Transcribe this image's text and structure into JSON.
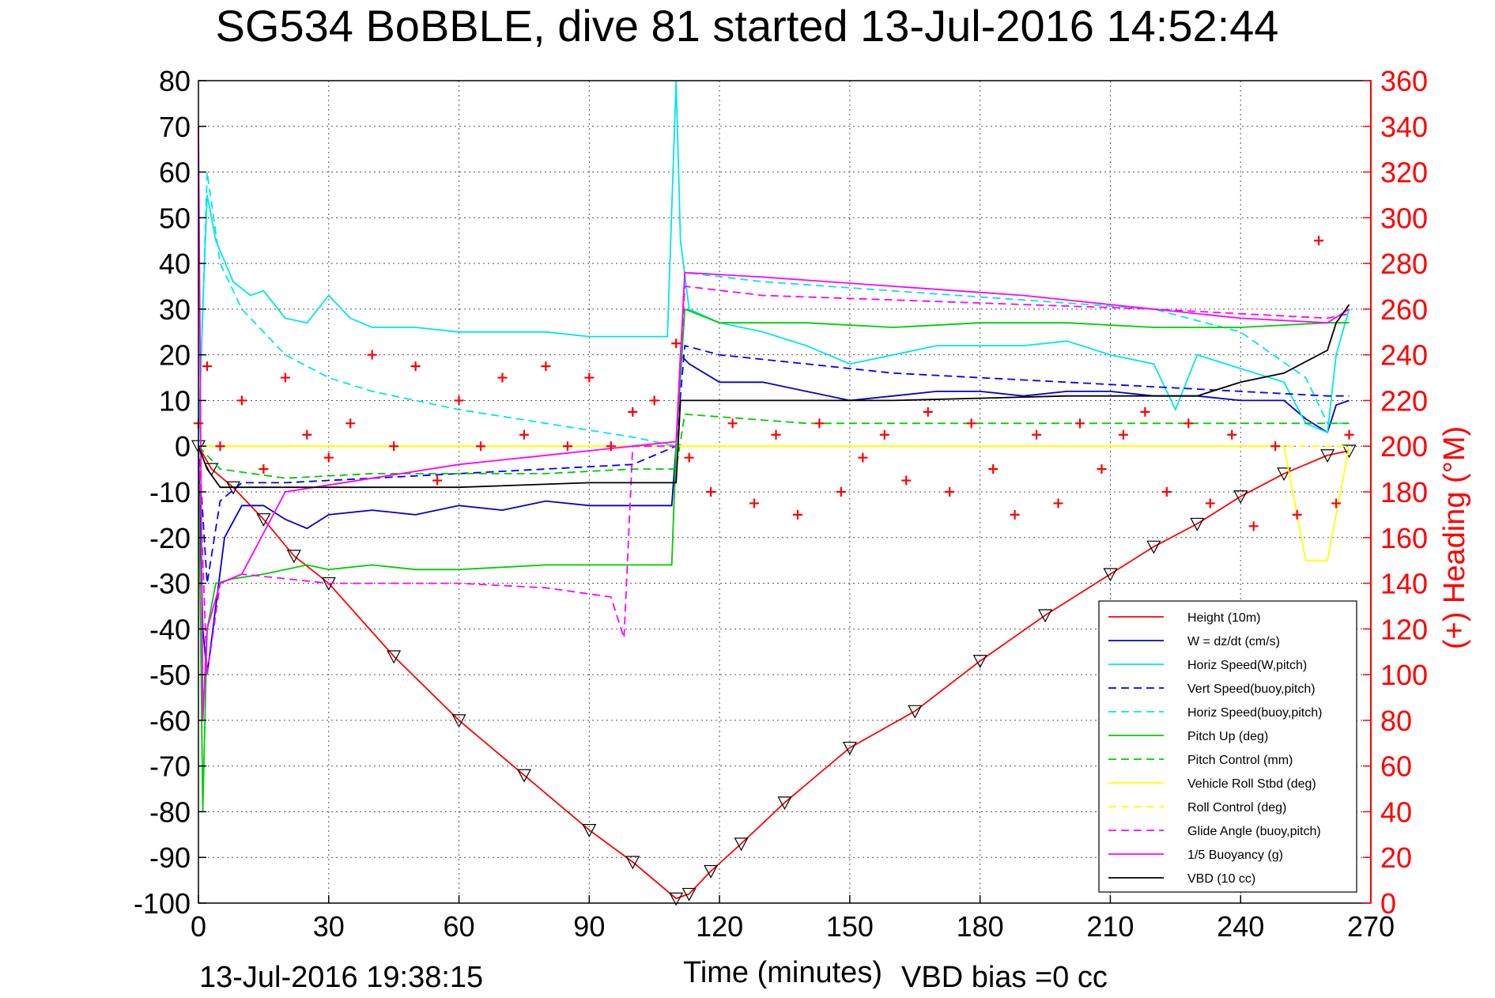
{
  "chart_data": {
    "type": "line",
    "title": "SG534 BoBBLE, dive 81 started 13-Jul-2016 14:52:44",
    "xlabel": "Time (minutes)",
    "ylabel": "",
    "y2label": "(+) Heading (°M)",
    "xlim": [
      0,
      270
    ],
    "ylim": [
      -100,
      80
    ],
    "y2lim": [
      0,
      360
    ],
    "x_ticks": [
      0,
      30,
      60,
      90,
      120,
      150,
      180,
      210,
      240,
      270
    ],
    "y_ticks": [
      -100,
      -90,
      -80,
      -70,
      -60,
      -50,
      -40,
      -30,
      -20,
      -10,
      0,
      10,
      20,
      30,
      40,
      50,
      60,
      70,
      80
    ],
    "y2_ticks": [
      0,
      20,
      40,
      60,
      80,
      100,
      120,
      140,
      160,
      180,
      200,
      220,
      240,
      260,
      280,
      300,
      320,
      340,
      360
    ],
    "grid": true,
    "legend_position": "bottom-right",
    "footer_left": "13-Jul-2016 19:38:15",
    "footer_right": "VBD bias =0 cc",
    "series": [
      {
        "name": "Height (10m)",
        "color": "#ff0000",
        "style": "solid",
        "markers": "triangle",
        "x": [
          0,
          3,
          8,
          15,
          22,
          30,
          45,
          60,
          75,
          90,
          100,
          110,
          113,
          118,
          125,
          135,
          150,
          165,
          180,
          195,
          210,
          220,
          230,
          240,
          250,
          260,
          265
        ],
        "y": [
          0,
          -5,
          -9,
          -16,
          -24,
          -30,
          -46,
          -60,
          -72,
          -84,
          -91,
          -99,
          -98,
          -93,
          -87,
          -78,
          -66,
          -58,
          -47,
          -37,
          -28,
          -22,
          -17,
          -11,
          -6,
          -2,
          -1
        ]
      },
      {
        "name": "W = dz/dt (cm/s)",
        "color": "#0000cc",
        "style": "solid",
        "x": [
          0,
          1,
          2,
          4,
          6,
          10,
          15,
          20,
          25,
          30,
          40,
          50,
          60,
          70,
          80,
          90,
          100,
          109,
          110,
          111,
          113,
          120,
          130,
          140,
          150,
          160,
          170,
          180,
          190,
          200,
          210,
          220,
          230,
          240,
          250,
          255,
          260,
          262,
          265
        ],
        "y": [
          0,
          -40,
          -50,
          -35,
          -20,
          -13,
          -13,
          -16,
          -18,
          -15,
          -14,
          -15,
          -13,
          -14,
          -12,
          -13,
          -13,
          -13,
          0,
          20,
          18,
          14,
          14,
          12,
          10,
          11,
          12,
          12,
          11,
          12,
          12,
          11,
          11,
          10,
          10,
          6,
          3,
          9,
          10
        ]
      },
      {
        "name": "Horiz Speed(W,pitch)",
        "color": "#00e6e6",
        "style": "solid",
        "x": [
          0,
          1,
          2,
          4,
          8,
          12,
          15,
          20,
          25,
          30,
          35,
          40,
          50,
          60,
          70,
          80,
          90,
          100,
          108,
          110,
          111,
          113,
          120,
          130,
          140,
          150,
          160,
          170,
          180,
          190,
          200,
          210,
          220,
          225,
          230,
          240,
          250,
          255,
          260,
          262,
          265
        ],
        "y": [
          0,
          30,
          55,
          45,
          36,
          33,
          34,
          28,
          27,
          33,
          28,
          26,
          26,
          25,
          25,
          25,
          24,
          24,
          24,
          80,
          45,
          30,
          27,
          25,
          22,
          18,
          20,
          22,
          22,
          22,
          23,
          20,
          18,
          8,
          20,
          17,
          14,
          5,
          3,
          20,
          30
        ]
      },
      {
        "name": "Vert Speed(buoy,pitch)",
        "color": "#0000ff",
        "style": "dashed",
        "x": [
          0,
          2,
          5,
          10,
          20,
          40,
          60,
          80,
          100,
          110,
          112,
          120,
          140,
          160,
          180,
          200,
          220,
          240,
          260,
          265
        ],
        "y": [
          0,
          -30,
          -12,
          -8,
          -8,
          -7,
          -6,
          -5,
          -4,
          0,
          22,
          20,
          18,
          16,
          15,
          14,
          13,
          12,
          11,
          11
        ]
      },
      {
        "name": "Horiz Speed(buoy,pitch)",
        "color": "#00e6e6",
        "style": "dashed",
        "x": [
          0,
          2,
          5,
          10,
          15,
          20,
          30,
          40,
          50,
          60,
          80,
          100,
          110,
          112,
          130,
          160,
          190,
          220,
          240,
          255,
          260,
          265
        ],
        "y": [
          0,
          60,
          40,
          30,
          25,
          20,
          15,
          12,
          10,
          8,
          5,
          2,
          0,
          38,
          36,
          34,
          32,
          30,
          25,
          15,
          5,
          5
        ]
      },
      {
        "name": "Pitch Up (deg)",
        "color": "#00cc00",
        "style": "solid",
        "x": [
          0,
          1,
          2,
          4,
          8,
          15,
          20,
          25,
          30,
          40,
          50,
          60,
          80,
          100,
          109,
          110,
          112,
          120,
          140,
          160,
          180,
          200,
          220,
          240,
          260,
          265
        ],
        "y": [
          0,
          -80,
          -40,
          -30,
          -29,
          -28,
          -27,
          -26,
          -27,
          -26,
          -27,
          -27,
          -26,
          -26,
          -26,
          0,
          30,
          27,
          27,
          26,
          27,
          27,
          26,
          26,
          27,
          27
        ]
      },
      {
        "name": "Pitch Control (mm)",
        "color": "#00cc00",
        "style": "dashed",
        "x": [
          0,
          5,
          20,
          40,
          60,
          80,
          100,
          110,
          112,
          140,
          170,
          200,
          230,
          260,
          265
        ],
        "y": [
          0,
          -5,
          -7,
          -6,
          -6,
          -6,
          -5,
          -5,
          7,
          5,
          5,
          5,
          5,
          5,
          5
        ]
      },
      {
        "name": "Vehicle Roll Stbd (deg)",
        "color": "#ffff00",
        "style": "solid",
        "x": [
          0,
          20,
          40,
          60,
          80,
          100,
          110,
          130,
          150,
          170,
          190,
          210,
          230,
          250,
          255,
          260,
          265
        ],
        "y": [
          0,
          0,
          0,
          0,
          0,
          0,
          0,
          0,
          0,
          0,
          0,
          0,
          0,
          0,
          -25,
          -25,
          0
        ]
      },
      {
        "name": "Roll Control (deg)",
        "color": "#ffff00",
        "style": "dashed",
        "x": [
          0,
          60,
          110,
          170,
          230,
          265
        ],
        "y": [
          0,
          0,
          0,
          0,
          0,
          0
        ]
      },
      {
        "name": "Glide Angle (buoy,pitch)",
        "color": "#ff00ff",
        "style": "dashed",
        "x": [
          0,
          2,
          5,
          10,
          20,
          30,
          40,
          60,
          80,
          95,
          98,
          100,
          110,
          112,
          130,
          160,
          190,
          220,
          240,
          260,
          265
        ],
        "y": [
          0,
          -50,
          -30,
          -28,
          -29,
          -30,
          -30,
          -30,
          -31,
          -33,
          -42,
          0,
          0,
          35,
          33,
          32,
          31,
          30,
          29,
          28,
          29
        ]
      },
      {
        "name": "1/5 Buoyancy (g)",
        "color": "#ff00ff",
        "style": "solid",
        "x": [
          0,
          1,
          2,
          5,
          10,
          20,
          40,
          60,
          80,
          100,
          110,
          112,
          130,
          160,
          190,
          220,
          240,
          260,
          265
        ],
        "y": [
          70,
          -60,
          -40,
          -30,
          -28,
          -10,
          -7,
          -4,
          -2,
          0,
          1,
          38,
          37,
          35,
          33,
          30,
          28,
          27,
          30
        ]
      },
      {
        "name": "VBD (10 cc)",
        "color": "#000000",
        "style": "solid",
        "x": [
          0,
          2,
          5,
          30,
          60,
          90,
          110,
          111,
          130,
          160,
          200,
          230,
          240,
          250,
          260,
          262,
          265
        ],
        "y": [
          0,
          -5,
          -9,
          -9,
          -9,
          -8,
          -8,
          10,
          10,
          10,
          11,
          11,
          14,
          16,
          21,
          27,
          31
        ]
      }
    ],
    "heading": {
      "name": "(+) Heading (°M)",
      "color": "#ff0000",
      "style": "markers",
      "x": [
        0,
        2,
        5,
        10,
        15,
        20,
        25,
        30,
        35,
        40,
        45,
        50,
        55,
        60,
        65,
        70,
        75,
        80,
        85,
        90,
        95,
        100,
        105,
        110,
        113,
        118,
        123,
        128,
        133,
        138,
        143,
        148,
        153,
        158,
        163,
        168,
        173,
        178,
        183,
        188,
        193,
        198,
        203,
        208,
        213,
        218,
        223,
        228,
        233,
        238,
        243,
        248,
        253,
        258,
        262,
        265
      ],
      "y": [
        210,
        235,
        200,
        220,
        190,
        230,
        205,
        195,
        210,
        240,
        200,
        235,
        185,
        220,
        200,
        230,
        205,
        235,
        200,
        230,
        200,
        215,
        220,
        245,
        195,
        180,
        210,
        175,
        205,
        170,
        210,
        180,
        195,
        205,
        185,
        215,
        180,
        210,
        190,
        170,
        205,
        175,
        210,
        190,
        205,
        215,
        180,
        210,
        175,
        205,
        165,
        200,
        170,
        290,
        175,
        205
      ]
    }
  }
}
